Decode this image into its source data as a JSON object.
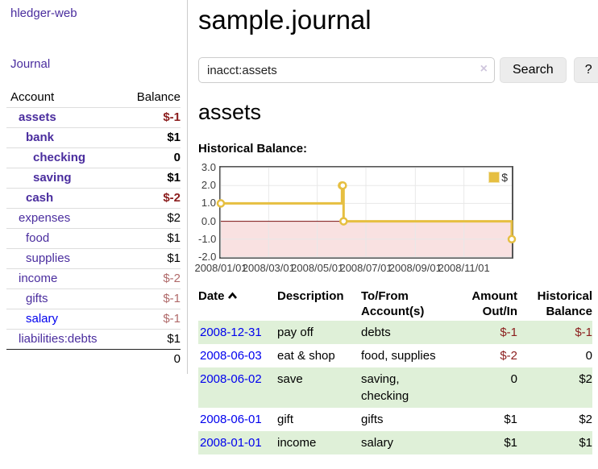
{
  "app": {
    "brand": "hledger-web"
  },
  "sidebar": {
    "nav": {
      "journal": "Journal"
    },
    "accounts": {
      "header_account": "Account",
      "header_balance": "Balance",
      "rows": [
        {
          "name": "assets",
          "balance": "$-1",
          "indent": 1,
          "bold": true,
          "neg": "strong"
        },
        {
          "name": "bank",
          "balance": "$1",
          "indent": 2,
          "bold": true,
          "neg": null
        },
        {
          "name": "checking",
          "balance": "0",
          "indent": 3,
          "bold": true,
          "neg": null
        },
        {
          "name": "saving",
          "balance": "$1",
          "indent": 3,
          "bold": true,
          "neg": null
        },
        {
          "name": "cash",
          "balance": "$-2",
          "indent": 2,
          "bold": true,
          "neg": "strong"
        },
        {
          "name": "expenses",
          "balance": "$2",
          "indent": 1,
          "bold": false,
          "neg": null
        },
        {
          "name": "food",
          "balance": "$1",
          "indent": 2,
          "bold": false,
          "neg": null
        },
        {
          "name": "supplies",
          "balance": "$1",
          "indent": 2,
          "bold": false,
          "neg": null
        },
        {
          "name": "income",
          "balance": "$-2",
          "indent": 1,
          "bold": false,
          "neg": "soft"
        },
        {
          "name": "gifts",
          "balance": "$-1",
          "indent": 2,
          "bold": false,
          "neg": "soft"
        },
        {
          "name": "salary",
          "balance": "$-1",
          "indent": 2,
          "bold": false,
          "neg": "soft",
          "unvisited": true
        },
        {
          "name": "liabilities:debts",
          "balance": "$1",
          "indent": 1,
          "bold": false,
          "neg": null
        }
      ],
      "total": "0"
    }
  },
  "main": {
    "title": "sample.journal",
    "search": {
      "value": "inacct:assets",
      "clear_icon": "×",
      "button_label": "Search",
      "help_label": "?"
    },
    "account_heading": "assets",
    "section_label": "Historical Balance:"
  },
  "chart_data": {
    "type": "line",
    "title": "Historical Balance:",
    "x_range": [
      "2008-01-01",
      "2008-12-31"
    ],
    "ylim": [
      -2,
      3
    ],
    "y_ticks": [
      "3.0",
      "2.0",
      "1.0",
      "0.0",
      "-1.0",
      "-2.0"
    ],
    "x_ticks": [
      "2008/01/01",
      "2008/03/01",
      "2008/05/01",
      "2008/07/01",
      "2008/09/01",
      "2008/11/01"
    ],
    "series": [
      {
        "name": "$",
        "step": true,
        "color": "#e6bf41",
        "marker_fill": "#ffffff",
        "points": [
          [
            "2008-01-01",
            1
          ],
          [
            "2008-06-01",
            2
          ],
          [
            "2008-06-02",
            2
          ],
          [
            "2008-06-03",
            0
          ],
          [
            "2008-12-31",
            -1
          ]
        ]
      }
    ],
    "grid": {
      "on": true,
      "border_color": "#545454",
      "gridline_color": "#e8e8e8",
      "zero_line_color": "#7b1010",
      "negative_region_color": "#f9e1e1"
    },
    "legend": {
      "position": "top-right",
      "label": "$"
    }
  },
  "transactions": {
    "headers": {
      "date": "Date",
      "description": "Description",
      "accounts": "To/From Account(s)",
      "amount": "Amount Out/In",
      "balance": "Historical Balance"
    },
    "rows": [
      {
        "date": "2008-12-31",
        "description": "pay off",
        "accounts": "debts",
        "amount": "$-1",
        "amount_neg": true,
        "balance": "$-1",
        "balance_neg": true,
        "shaded": true
      },
      {
        "date": "2008-06-03",
        "description": "eat & shop",
        "accounts": "food, supplies",
        "amount": "$-2",
        "amount_neg": true,
        "balance": "0",
        "balance_neg": false,
        "shaded": false
      },
      {
        "date": "2008-06-02",
        "description": "save",
        "accounts": "saving, checking",
        "amount": "0",
        "amount_neg": false,
        "balance": "$2",
        "balance_neg": false,
        "shaded": true
      },
      {
        "date": "2008-06-01",
        "description": "gift",
        "accounts": "gifts",
        "amount": "$1",
        "amount_neg": false,
        "balance": "$2",
        "balance_neg": false,
        "shaded": false
      },
      {
        "date": "2008-01-01",
        "description": "income",
        "accounts": "salary",
        "amount": "$1",
        "amount_neg": false,
        "balance": "$1",
        "balance_neg": false,
        "shaded": true
      }
    ]
  },
  "colors": {
    "link_purple": "#4a2d9e",
    "link_blue": "#0000ee",
    "negative_strong": "#8b1d1d",
    "negative_soft": "#b06a6a",
    "row_shade_green": "#dff0d8",
    "accent_yellow": "#e6bf41"
  }
}
